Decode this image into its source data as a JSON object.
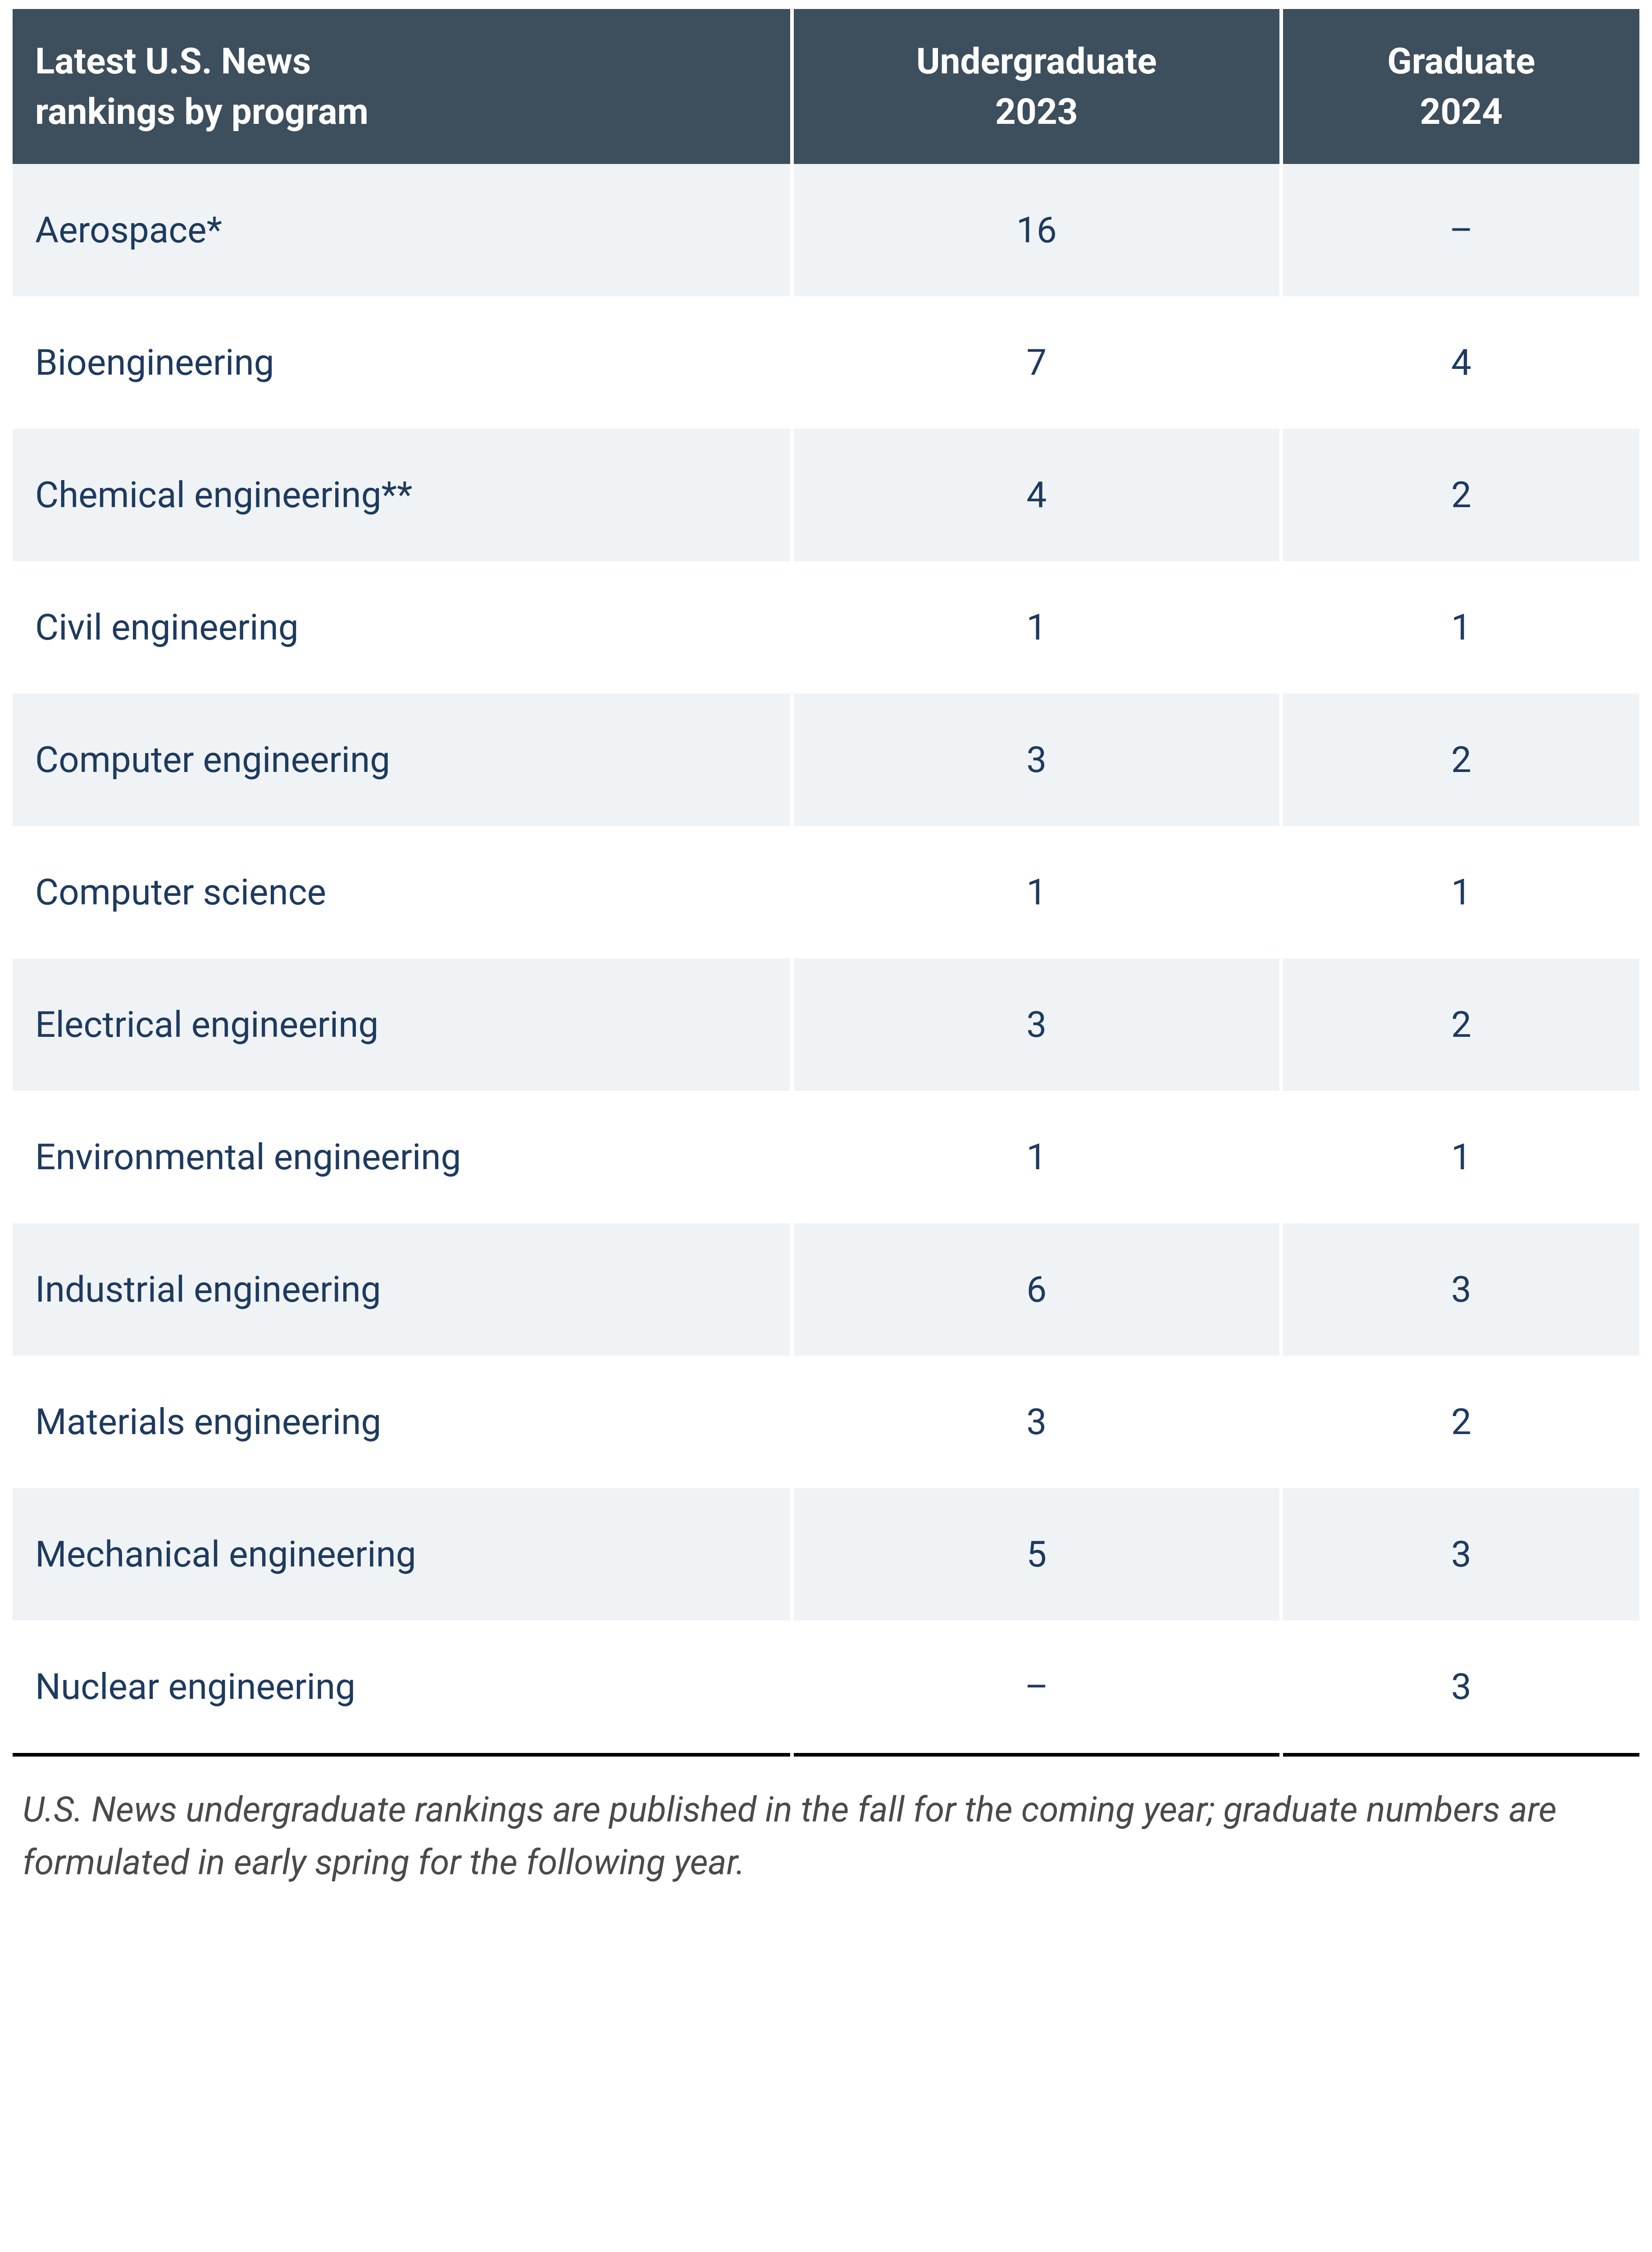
{
  "table": {
    "type": "table",
    "header_bg_color": "#3d4e5c",
    "header_text_color": "#ffffff",
    "row_odd_bg_color": "#f0f3f5",
    "row_even_bg_color": "#ffffff",
    "cell_text_color": "#1e3a5f",
    "header_font_size": 80,
    "body_font_size": 80,
    "border_bottom_color": "#000000",
    "columns": [
      {
        "label_line1": "Latest U.S. News",
        "label_line2": "rankings by program",
        "align": "left",
        "width_pct": 48
      },
      {
        "label_line1": "Undergraduate",
        "label_line2": "2023",
        "align": "center",
        "width_pct": 30
      },
      {
        "label_line1": "Graduate",
        "label_line2": "2024",
        "align": "center",
        "width_pct": 22
      }
    ],
    "rows": [
      {
        "program": "Aerospace*",
        "undergrad": "16",
        "grad": "–"
      },
      {
        "program": "Bioengineering",
        "undergrad": "7",
        "grad": "4"
      },
      {
        "program": "Chemical engineering**",
        "undergrad": "4",
        "grad": "2"
      },
      {
        "program": "Civil engineering",
        "undergrad": "1",
        "grad": "1"
      },
      {
        "program": "Computer engineering",
        "undergrad": "3",
        "grad": "2"
      },
      {
        "program": "Computer science",
        "undergrad": "1",
        "grad": "1"
      },
      {
        "program": "Electrical engineering",
        "undergrad": "3",
        "grad": "2"
      },
      {
        "program": "Environmental engineering",
        "undergrad": "1",
        "grad": "1"
      },
      {
        "program": "Industrial engineering",
        "undergrad": "6",
        "grad": "3"
      },
      {
        "program": "Materials engineering",
        "undergrad": "3",
        "grad": "2"
      },
      {
        "program": "Mechanical engineering",
        "undergrad": "5",
        "grad": "3"
      },
      {
        "program": "Nuclear engineering",
        "undergrad": "–",
        "grad": "3"
      }
    ]
  },
  "footnote": {
    "text": "U.S. News undergraduate rankings are published in the fall for the coming year; graduate numbers are formulated in early spring for the following year.",
    "font_size": 78,
    "text_color": "#4a4a4a",
    "font_style": "italic"
  }
}
